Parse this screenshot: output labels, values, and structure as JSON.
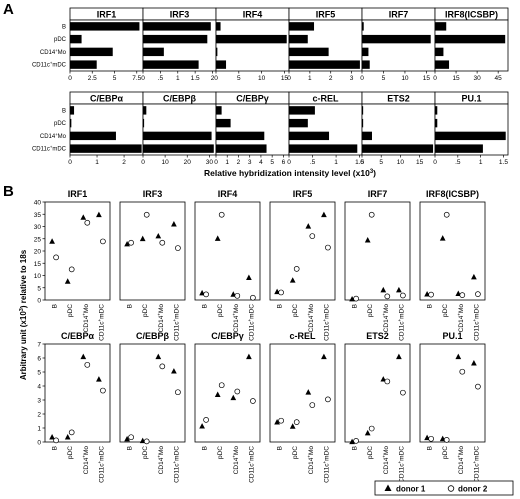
{
  "chart_data": {
    "panel_A": {
      "label": "A",
      "type": "bar",
      "orientation": "horizontal",
      "categories": [
        "B",
        "pDC",
        "CD14+Mo",
        "CD11c+mDC"
      ],
      "category_labels": [
        {
          "base": "B",
          "sup": "",
          "tail": ""
        },
        {
          "base": "pDC",
          "sup": "",
          "tail": ""
        },
        {
          "base": "CD14",
          "sup": "+",
          "tail": "Mo"
        },
        {
          "base": "CD11c",
          "sup": "+",
          "tail": "mDC"
        }
      ],
      "xlabel": "Relative hybridization intensity level (x10",
      "xlabel_sup": "3",
      "xlabel_tail": ")",
      "charts": [
        {
          "title": "IRF1",
          "xlim": [
            0,
            8.2
          ],
          "ticks": [
            0,
            2.5,
            5,
            7.5
          ],
          "tick_labels": [
            "0",
            "2.5",
            "5",
            "7.5"
          ],
          "values": [
            7.8,
            1.3,
            4.8,
            3.0
          ]
        },
        {
          "title": "IRF3",
          "xlim": [
            0,
            2.1
          ],
          "ticks": [
            0,
            0.5,
            1,
            1.5,
            2
          ],
          "tick_labels": [
            "0",
            ".5",
            "1",
            "1.5",
            "2"
          ],
          "values": [
            1.95,
            1.85,
            0.6,
            1.6
          ]
        },
        {
          "title": "IRF4",
          "xlim": [
            0,
            16
          ],
          "ticks": [
            0,
            5,
            10,
            15
          ],
          "tick_labels": [
            "0",
            "5",
            "10",
            "15"
          ],
          "values": [
            1.0,
            15.5,
            0.3,
            2.2
          ]
        },
        {
          "title": "IRF5",
          "xlim": [
            0,
            3.5
          ],
          "ticks": [
            0,
            1,
            2,
            3
          ],
          "tick_labels": [
            "0",
            "1",
            "2",
            "3"
          ],
          "values": [
            1.2,
            0.9,
            1.9,
            3.4
          ]
        },
        {
          "title": "IRF7",
          "xlim": [
            0,
            17
          ],
          "ticks": [
            0,
            5,
            10,
            15
          ],
          "tick_labels": [
            "0",
            "5",
            "10",
            "15"
          ],
          "values": [
            0.4,
            16.0,
            1.5,
            1.8
          ]
        },
        {
          "title": "IRF8(ICSBP)",
          "xlim": [
            0,
            52
          ],
          "ticks": [
            0,
            15,
            30,
            45
          ],
          "tick_labels": [
            "0",
            "15",
            "30",
            "45"
          ],
          "values": [
            8,
            50,
            6,
            10
          ]
        },
        {
          "title": "C/EBPα",
          "xlim": [
            0,
            2.7
          ],
          "ticks": [
            0,
            1,
            2
          ],
          "tick_labels": [
            "0",
            "1",
            "2"
          ],
          "values": [
            0.15,
            0.05,
            1.7,
            2.65
          ]
        },
        {
          "title": "C/EBPβ",
          "xlim": [
            0,
            33
          ],
          "ticks": [
            0,
            10,
            20,
            30
          ],
          "tick_labels": [
            "0",
            "10",
            "20",
            "30"
          ],
          "values": [
            1.5,
            0.5,
            31,
            32
          ]
        },
        {
          "title": "C/EBPγ",
          "xlim": [
            0,
            6.5
          ],
          "ticks": [
            0,
            1,
            2,
            3,
            4,
            5,
            6
          ],
          "tick_labels": [
            "0",
            "1",
            "2",
            "3",
            "4",
            "5",
            "6"
          ],
          "values": [
            0.5,
            1.3,
            4.3,
            4.5
          ]
        },
        {
          "title": "c-REL",
          "xlim": [
            0,
            1.55
          ],
          "ticks": [
            0,
            0.5,
            1,
            1.5
          ],
          "tick_labels": [
            "0",
            ".5",
            "1",
            "1.5"
          ],
          "values": [
            0.55,
            0.4,
            0.85,
            1.45
          ]
        },
        {
          "title": "ETS2",
          "xlim": [
            0,
            19
          ],
          "ticks": [
            0,
            5,
            10,
            15
          ],
          "tick_labels": [
            "0",
            "5",
            "10",
            "15"
          ],
          "values": [
            0.3,
            0.3,
            2.6,
            18.5
          ]
        },
        {
          "title": "PU.1",
          "xlim": [
            0,
            1.6
          ],
          "ticks": [
            0,
            0.5,
            1,
            1.5
          ],
          "tick_labels": [
            "0",
            ".5",
            "1",
            "1.5"
          ],
          "values": [
            0.05,
            0.05,
            1.55,
            1.05
          ]
        }
      ]
    },
    "panel_B": {
      "label": "B",
      "type": "scatter",
      "categories": [
        "B",
        "pDC",
        "CD14+Mo",
        "CD11c+mDC"
      ],
      "category_labels": [
        {
          "base": "B",
          "sup": "",
          "tail": ""
        },
        {
          "base": "pDC",
          "sup": "",
          "tail": ""
        },
        {
          "base": "CD14",
          "sup": "+",
          "tail": "Mo"
        },
        {
          "base": "CD11c",
          "sup": "+",
          "tail": "mDC"
        }
      ],
      "ylabel": "Arbitrary unit (x10",
      "ylabel_sup": "3",
      "ylabel_tail": ") relative to 18s",
      "legend": {
        "placement": "bottom-right",
        "entries": [
          {
            "name": "donor 1",
            "symbol": "triangle-filled"
          },
          {
            "name": "donor 2",
            "symbol": "circle-open"
          }
        ]
      },
      "rows": [
        {
          "ylim": [
            0,
            40
          ],
          "ticks": [
            0,
            5,
            10,
            15,
            20,
            25,
            30,
            35,
            40
          ],
          "tick_labels": [
            "0",
            "5",
            "10",
            "15",
            "20",
            "25",
            "30",
            "35",
            "40"
          ]
        },
        {
          "ylim": [
            0,
            7
          ],
          "ticks": [
            0,
            1,
            2,
            3,
            4,
            5,
            6,
            7
          ],
          "tick_labels": [
            "0",
            "1",
            "2",
            "3",
            "4",
            "5",
            "6",
            "7"
          ]
        }
      ],
      "charts": [
        {
          "title": "IRF1",
          "row": 0,
          "series": [
            {
              "name": "donor 1",
              "values": [
                22,
                7,
                31,
                32
              ]
            },
            {
              "name": "donor 2",
              "values": [
                16,
                11.5,
                29,
                22
              ]
            }
          ]
        },
        {
          "title": "IRF3",
          "row": 0,
          "series": [
            {
              "name": "donor 1",
              "values": [
                21,
                23,
                24,
                28.5
              ]
            },
            {
              "name": "donor 2",
              "values": [
                21.5,
                32,
                21.5,
                19.5
              ]
            }
          ]
        },
        {
          "title": "IRF4",
          "row": 0,
          "series": [
            {
              "name": "donor 1",
              "values": [
                2.5,
                22,
                2,
                8
              ]
            },
            {
              "name": "donor 2",
              "values": [
                2,
                30.5,
                1.5,
                0.8
              ]
            }
          ]
        },
        {
          "title": "IRF5",
          "row": 0,
          "series": [
            {
              "name": "donor 1",
              "values": [
                2.5,
                6,
                22.5,
                26
              ]
            },
            {
              "name": "donor 2",
              "values": [
                2.3,
                9.5,
                19.5,
                16
              ]
            }
          ]
        },
        {
          "title": "IRF7",
          "row": 0,
          "series": [
            {
              "name": "donor 1",
              "values": [
                1,
                66,
                11,
                11
              ]
            },
            {
              "name": "donor 2",
              "values": [
                1.5,
                94,
                4,
                5
              ]
            }
          ]
        },
        {
          "title": "IRF8(ICSBP)",
          "row": 0,
          "series": [
            {
              "name": "donor 1",
              "values": [
                12,
                126,
                13,
                47
              ]
            },
            {
              "name": "donor 2",
              "values": [
                11,
                174,
                10,
                12
              ]
            }
          ]
        },
        {
          "title": "C/EBPα",
          "row": 1,
          "series": [
            {
              "name": "donor 1",
              "values": [
                0.15,
                0.15,
                2.65,
                1.95
              ]
            },
            {
              "name": "donor 2",
              "values": [
                0.05,
                0.3,
                2.4,
                1.6
              ]
            }
          ]
        },
        {
          "title": "C/EBPβ",
          "row": 1,
          "series": [
            {
              "name": "donor 1",
              "values": [
                0.5,
                0.2,
                14.2,
                11.8
              ]
            },
            {
              "name": "donor 2",
              "values": [
                0.8,
                0.1,
                12.6,
                8.3
              ]
            }
          ]
        },
        {
          "title": "C/EBPγ",
          "row": 1,
          "series": [
            {
              "name": "donor 1",
              "values": [
                0.05,
                0.15,
                0.14,
                0.27
              ]
            },
            {
              "name": "donor 2",
              "values": [
                0.07,
                0.18,
                0.16,
                0.13
              ]
            }
          ]
        },
        {
          "title": "c-REL",
          "row": 1,
          "series": [
            {
              "name": "donor 1",
              "values": [
                0.7,
                0.55,
                1.75,
                3.0
              ]
            },
            {
              "name": "donor 2",
              "values": [
                0.75,
                0.7,
                1.3,
                1.5
              ]
            }
          ]
        },
        {
          "title": "ETS2",
          "row": 1,
          "series": [
            {
              "name": "donor 1",
              "values": [
                0.1,
                4,
                28,
                38
              ]
            },
            {
              "name": "donor 2",
              "values": [
                0.5,
                6,
                27,
                22
              ]
            }
          ]
        },
        {
          "title": "PU.1",
          "row": 1,
          "series": [
            {
              "name": "donor 1",
              "values": [
                0.2,
                0.15,
                4,
                3.7
              ]
            },
            {
              "name": "donor 2",
              "values": [
                0.15,
                0.1,
                3.3,
                2.6
              ]
            }
          ]
        }
      ]
    }
  }
}
